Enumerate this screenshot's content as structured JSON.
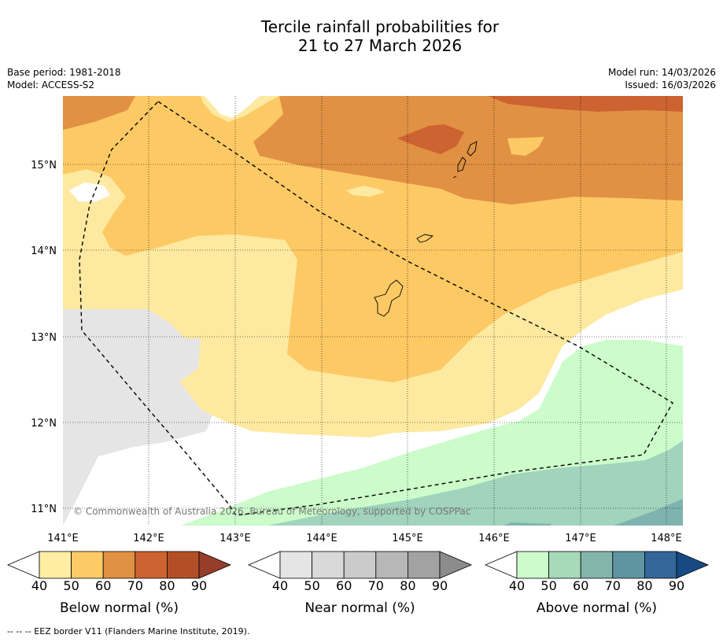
{
  "title": {
    "line1": "Tercile rainfall probabilities for",
    "line2": "21 to 27 March 2026"
  },
  "meta": {
    "base_period": "Base period: 1981-2018",
    "model": "Model: ACCESS-S2",
    "model_run": "Model run: 14/03/2026",
    "issued": "Issued: 16/03/2026"
  },
  "map": {
    "lat_labels": [
      "15°N",
      "14°N",
      "13°N",
      "12°N",
      "11°N"
    ],
    "lon_labels": [
      "141°E",
      "142°E",
      "143°E",
      "144°E",
      "145°E",
      "146°E",
      "147°E",
      "148°E"
    ],
    "copyright": "© Commonwealth of Australia 2026, Bureau of Meteorology, supported by COSPPac",
    "colors": {
      "below_40": "#fee9a0",
      "below_50": "#fdc965",
      "below_60": "#e09143",
      "below_70": "#cc6331",
      "near_40": "#e5e5e5",
      "above_40": "#cbfcca",
      "above_50": "#a1d3bd",
      "above_60": "#7fb4ae",
      "above_70": "#6aa0a5"
    }
  },
  "colorbars": [
    {
      "label": "Below normal (%)",
      "ticks": [
        "40",
        "50",
        "60",
        "70",
        "80",
        "90"
      ],
      "colors": [
        "#ffeea4",
        "#fdcb66",
        "#e09143",
        "#cc6331",
        "#b34f27",
        "#963e2a"
      ]
    },
    {
      "label": "Near normal (%)",
      "ticks": [
        "40",
        "50",
        "60",
        "70",
        "80",
        "90"
      ],
      "colors": [
        "#e5e5e5",
        "#d9d9d9",
        "#cbcbcb",
        "#b7b7b7",
        "#a2a2a2",
        "#8c8c8c"
      ]
    },
    {
      "label": "Above normal (%)",
      "ticks": [
        "40",
        "50",
        "60",
        "70",
        "80",
        "90"
      ],
      "colors": [
        "#cbfcca",
        "#a6dab9",
        "#84b5ad",
        "#5f95a1",
        "#336699",
        "#174a82"
      ]
    }
  ],
  "footer": "--  --  -- EEZ border V11 (Flanders Marine Institute, 2019)."
}
